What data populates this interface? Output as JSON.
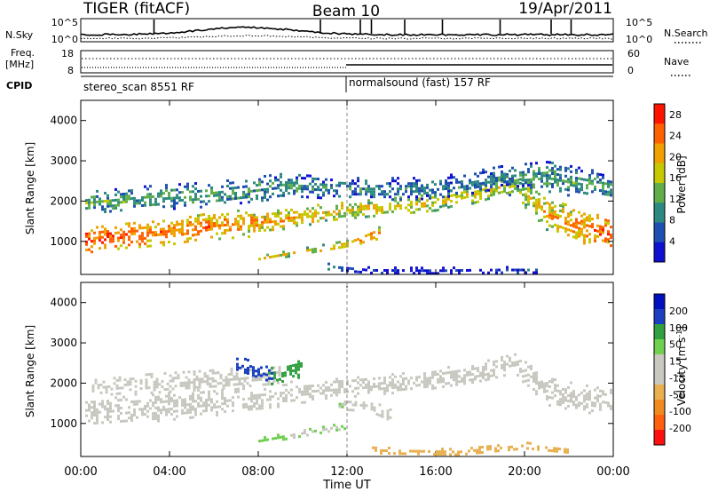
{
  "header": {
    "title": "TIGER (fitACF)",
    "beam": "Beam 10",
    "date": "19/Apr/2011"
  },
  "noise_panel": {
    "left_label": "N.Sky",
    "right_label": "N.Search",
    "left_ticks": [
      "10^5",
      "10^0"
    ],
    "right_ticks": [
      "10^5",
      "10^0"
    ]
  },
  "freq_panel": {
    "left_label_line1": "Freq.",
    "left_label_line2": "[MHz]",
    "right_label": "Nave",
    "left_ticks": [
      "18",
      "8"
    ],
    "right_ticks": [
      "60",
      "0"
    ]
  },
  "cpid_panel": {
    "label": "CPID",
    "segments": [
      {
        "text": "stereo_scan 8551 RF",
        "start_hour": 0
      },
      {
        "text": "normalsound (fast) 157 RF",
        "start_hour": 12
      }
    ]
  },
  "time_axis": {
    "label": "Time UT",
    "ticks": [
      "00:00",
      "04:00",
      "08:00",
      "12:00",
      "16:00",
      "20:00",
      "00:00"
    ],
    "range_hours": [
      0,
      24
    ]
  },
  "chart_data": [
    {
      "type": "heatmap",
      "name": "power",
      "ylabel": "Slant Range [km]",
      "ylim": [
        180,
        4500
      ],
      "yticks": [
        "1000",
        "2000",
        "3000",
        "4000"
      ],
      "colorbar_label": "Power [dB]",
      "colorbar_ticks": [
        "4",
        "8",
        "12",
        "16",
        "20",
        "24",
        "28"
      ],
      "colorbar_range": [
        0,
        30
      ],
      "colors": [
        "#1010d0",
        "#1f4fb0",
        "#2d8a80",
        "#5fae4a",
        "#c8c800",
        "#f0a000",
        "#ff6000",
        "#ff1400"
      ],
      "x_unit": "hours UT",
      "features": [
        {
          "points": [
            [
              0.2,
              1050,
              300,
              26
            ],
            [
              2,
              1150,
              320,
              25
            ],
            [
              4,
              1250,
              300,
              24
            ],
            [
              6,
              1400,
              350,
              23
            ],
            [
              8,
              1500,
              330,
              21
            ],
            [
              10,
              1650,
              250,
              20
            ],
            [
              12,
              1800,
              200,
              19
            ],
            [
              14,
              1900,
              200,
              19
            ],
            [
              16,
              2000,
              200,
              18
            ],
            [
              18,
              2250,
              250,
              17
            ],
            [
              19.5,
              2450,
              300,
              16
            ],
            [
              21,
              1700,
              400,
              20
            ],
            [
              22.5,
              1400,
              400,
              23
            ],
            [
              23.9,
              1200,
              380,
              25
            ]
          ]
        },
        {
          "points": [
            [
              0.2,
              2000,
              250,
              13
            ],
            [
              3,
              2100,
              300,
              12
            ],
            [
              6,
              2200,
              300,
              12
            ],
            [
              9,
              2400,
              300,
              11
            ],
            [
              12,
              2350,
              250,
              10
            ],
            [
              15,
              2300,
              300,
              9
            ],
            [
              17,
              2400,
              300,
              9
            ],
            [
              19,
              2650,
              250,
              10
            ],
            [
              21,
              2600,
              400,
              12
            ],
            [
              23.9,
              2400,
              300,
              12
            ]
          ]
        },
        {
          "points": [
            [
              8,
              600,
              60,
              17
            ],
            [
              10,
              780,
              80,
              18
            ],
            [
              12,
              950,
              100,
              21
            ],
            [
              13.5,
              1250,
              150,
              24
            ]
          ]
        },
        {
          "points": [
            [
              11,
              400,
              80,
              9
            ],
            [
              13,
              300,
              80,
              5
            ],
            [
              16,
              280,
              90,
              4
            ],
            [
              19,
              300,
              90,
              4
            ],
            [
              20.5,
              310,
              80,
              6
            ]
          ]
        }
      ]
    },
    {
      "type": "heatmap",
      "name": "velocity",
      "ylabel": "Slant Range [km]",
      "ylim": [
        180,
        4500
      ],
      "yticks": [
        "1000",
        "2000",
        "3000",
        "4000"
      ],
      "colorbar_label": "Velocity [m s^-1]",
      "colorbar_ticks": [
        "200",
        "100",
        "50",
        "15",
        "-15",
        "-50",
        "-100",
        "-200"
      ],
      "colorbar_range": [
        -250,
        250
      ],
      "colors": [
        "#ff1010",
        "#ff6010",
        "#f08a20",
        "#e8b050",
        "#c8c8c0",
        "#c8c8c0",
        "#70d050",
        "#30a040",
        "#1a40c0",
        "#0010c0"
      ],
      "x_unit": "hours UT",
      "features": [
        {
          "points": [
            [
              0.2,
              1300,
              320,
              0
            ],
            [
              3,
              1400,
              330,
              -5
            ],
            [
              6,
              1550,
              350,
              0
            ],
            [
              9,
              1750,
              300,
              0
            ],
            [
              12,
              1900,
              250,
              0
            ],
            [
              15,
              2050,
              250,
              0
            ],
            [
              18,
              2300,
              250,
              0
            ],
            [
              19.5,
              2500,
              250,
              0
            ],
            [
              21,
              1800,
              350,
              0
            ],
            [
              23.9,
              1500,
              350,
              0
            ]
          ]
        },
        {
          "points": [
            [
              0.5,
              1900,
              200,
              -30
            ],
            [
              3,
              2000,
              250,
              -40
            ],
            [
              6,
              2100,
              250,
              -30
            ],
            [
              9,
              2250,
              250,
              -20
            ]
          ]
        },
        {
          "points": [
            [
              7,
              2500,
              200,
              180
            ],
            [
              8.5,
              2200,
              200,
              150
            ],
            [
              10,
              2400,
              200,
              120
            ]
          ]
        },
        {
          "points": [
            [
              11.5,
              1500,
              150,
              60
            ],
            [
              13,
              1450,
              150,
              -40
            ],
            [
              14,
              1200,
              150,
              60
            ]
          ]
        },
        {
          "points": [
            [
              8,
              600,
              60,
              60
            ],
            [
              10,
              780,
              80,
              50
            ],
            [
              12,
              950,
              100,
              60
            ]
          ]
        },
        {
          "points": [
            [
              13,
              350,
              80,
              -60
            ],
            [
              17,
              300,
              90,
              -80
            ],
            [
              20,
              450,
              100,
              -80
            ],
            [
              22,
              350,
              90,
              -60
            ]
          ]
        }
      ]
    }
  ]
}
